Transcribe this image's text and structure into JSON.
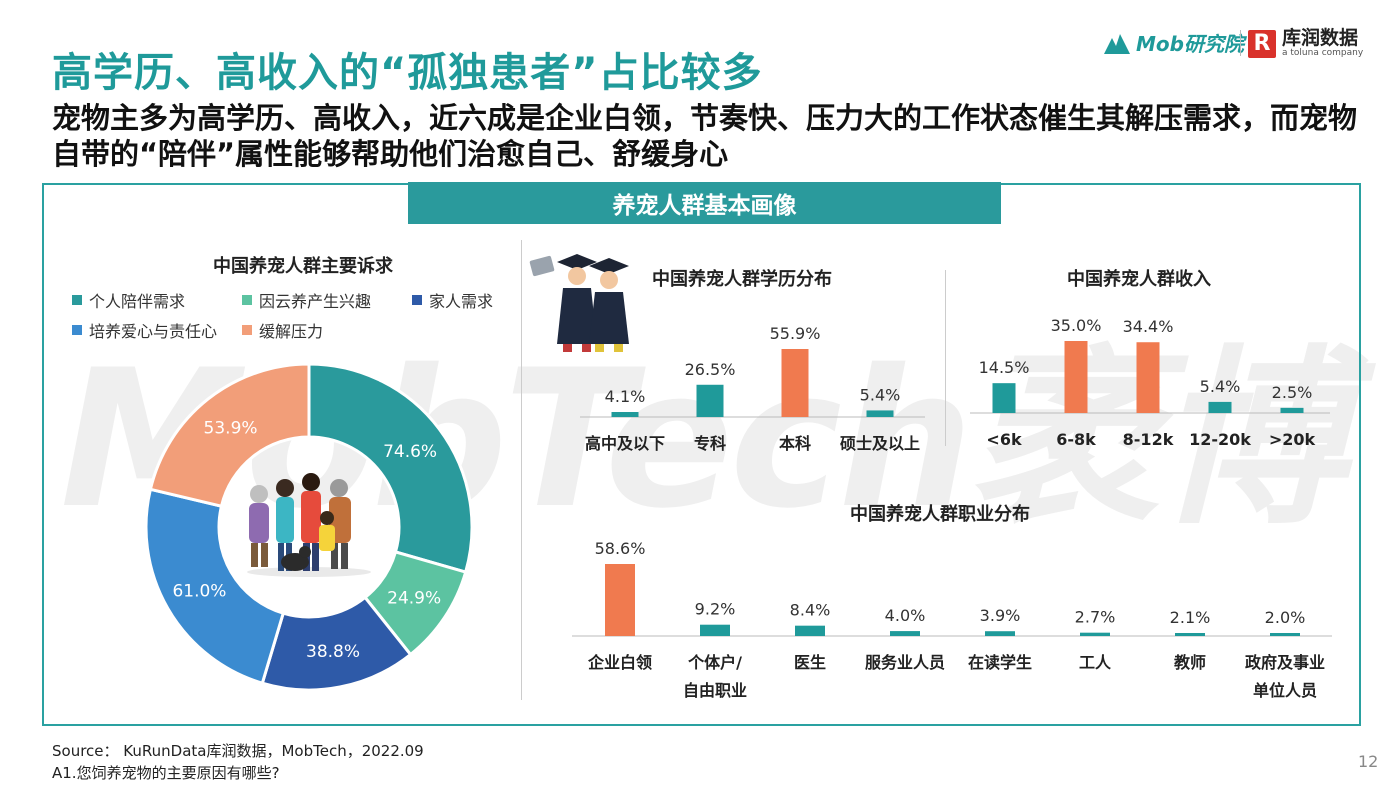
{
  "title": "高学历、高收入的“孤独患者”占比较多",
  "subtitle": "宠物主多为高学历、高收入，近六成是企业白领，节奏快、压力大的工作状态催生其解压需求，而宠物自带的“陪伴”属性能够帮助他们治愈自己、舒缓身心",
  "logos": {
    "mob": "Mob研究院",
    "kurun_mark": "R",
    "kurun": "库润数据",
    "kurun_sub": "a toluna company"
  },
  "banner": "养宠人群基本画像",
  "watermark": "MobTech袤博",
  "source_line": "Source：  KuRunData库润数据，MobTech，2022.09",
  "question_line": "A1.您饲养宠物的主要原因有哪些?",
  "page_number": "12",
  "colors": {
    "teal": "#1f9a9a",
    "orange": "#f07a4f",
    "green": "#5cc3a1",
    "navy": "#2e5aa8",
    "blue": "#3b8bd0",
    "peach": "#f29e79"
  },
  "chart_data": [
    {
      "type": "pie",
      "title": "中国养宠人群主要诉求",
      "categories": [
        "个人陪伴需求",
        "因云养产生兴趣",
        "家人需求",
        "培养爱心与责任心",
        "缓解压力"
      ],
      "values": [
        74.6,
        24.9,
        38.8,
        61.0,
        53.9
      ],
      "value_labels": [
        "74.6%",
        "24.9%",
        "38.8%",
        "61.0%",
        "53.9%"
      ],
      "colors": [
        "#2a9a9c",
        "#5cc3a1",
        "#2e5aa8",
        "#3b8bd0",
        "#f29e79"
      ],
      "legend": "top"
    },
    {
      "type": "bar",
      "title": "中国养宠人群学历分布",
      "categories": [
        "高中及以下",
        "专科",
        "本科",
        "硕士及以上"
      ],
      "values": [
        4.1,
        26.5,
        55.9,
        5.4
      ],
      "value_labels": [
        "4.1%",
        "26.5%",
        "55.9%",
        "5.4%"
      ],
      "highlight_index": 2
    },
    {
      "type": "bar",
      "title": "中国养宠人群收入",
      "categories": [
        "<6k",
        "6-8k",
        "8-12k",
        "12-20k",
        ">20k"
      ],
      "values": [
        14.5,
        35.0,
        34.4,
        5.4,
        2.5
      ],
      "value_labels": [
        "14.5%",
        "35.0%",
        "34.4%",
        "5.4%",
        "2.5%"
      ],
      "highlight_index": [
        1,
        2
      ]
    },
    {
      "type": "bar",
      "title": "中国养宠人群职业分布",
      "categories": [
        "企业白领",
        "个体户/\n自由职业",
        "医生",
        "服务业人员",
        "在读学生",
        "工人",
        "教师",
        "政府及事业\n单位人员"
      ],
      "values": [
        58.6,
        9.2,
        8.4,
        4.0,
        3.9,
        2.7,
        2.1,
        2.0
      ],
      "value_labels": [
        "58.6%",
        "9.2%",
        "8.4%",
        "4.0%",
        "3.9%",
        "2.7%",
        "2.1%",
        "2.0%"
      ],
      "highlight_index": 0
    }
  ]
}
